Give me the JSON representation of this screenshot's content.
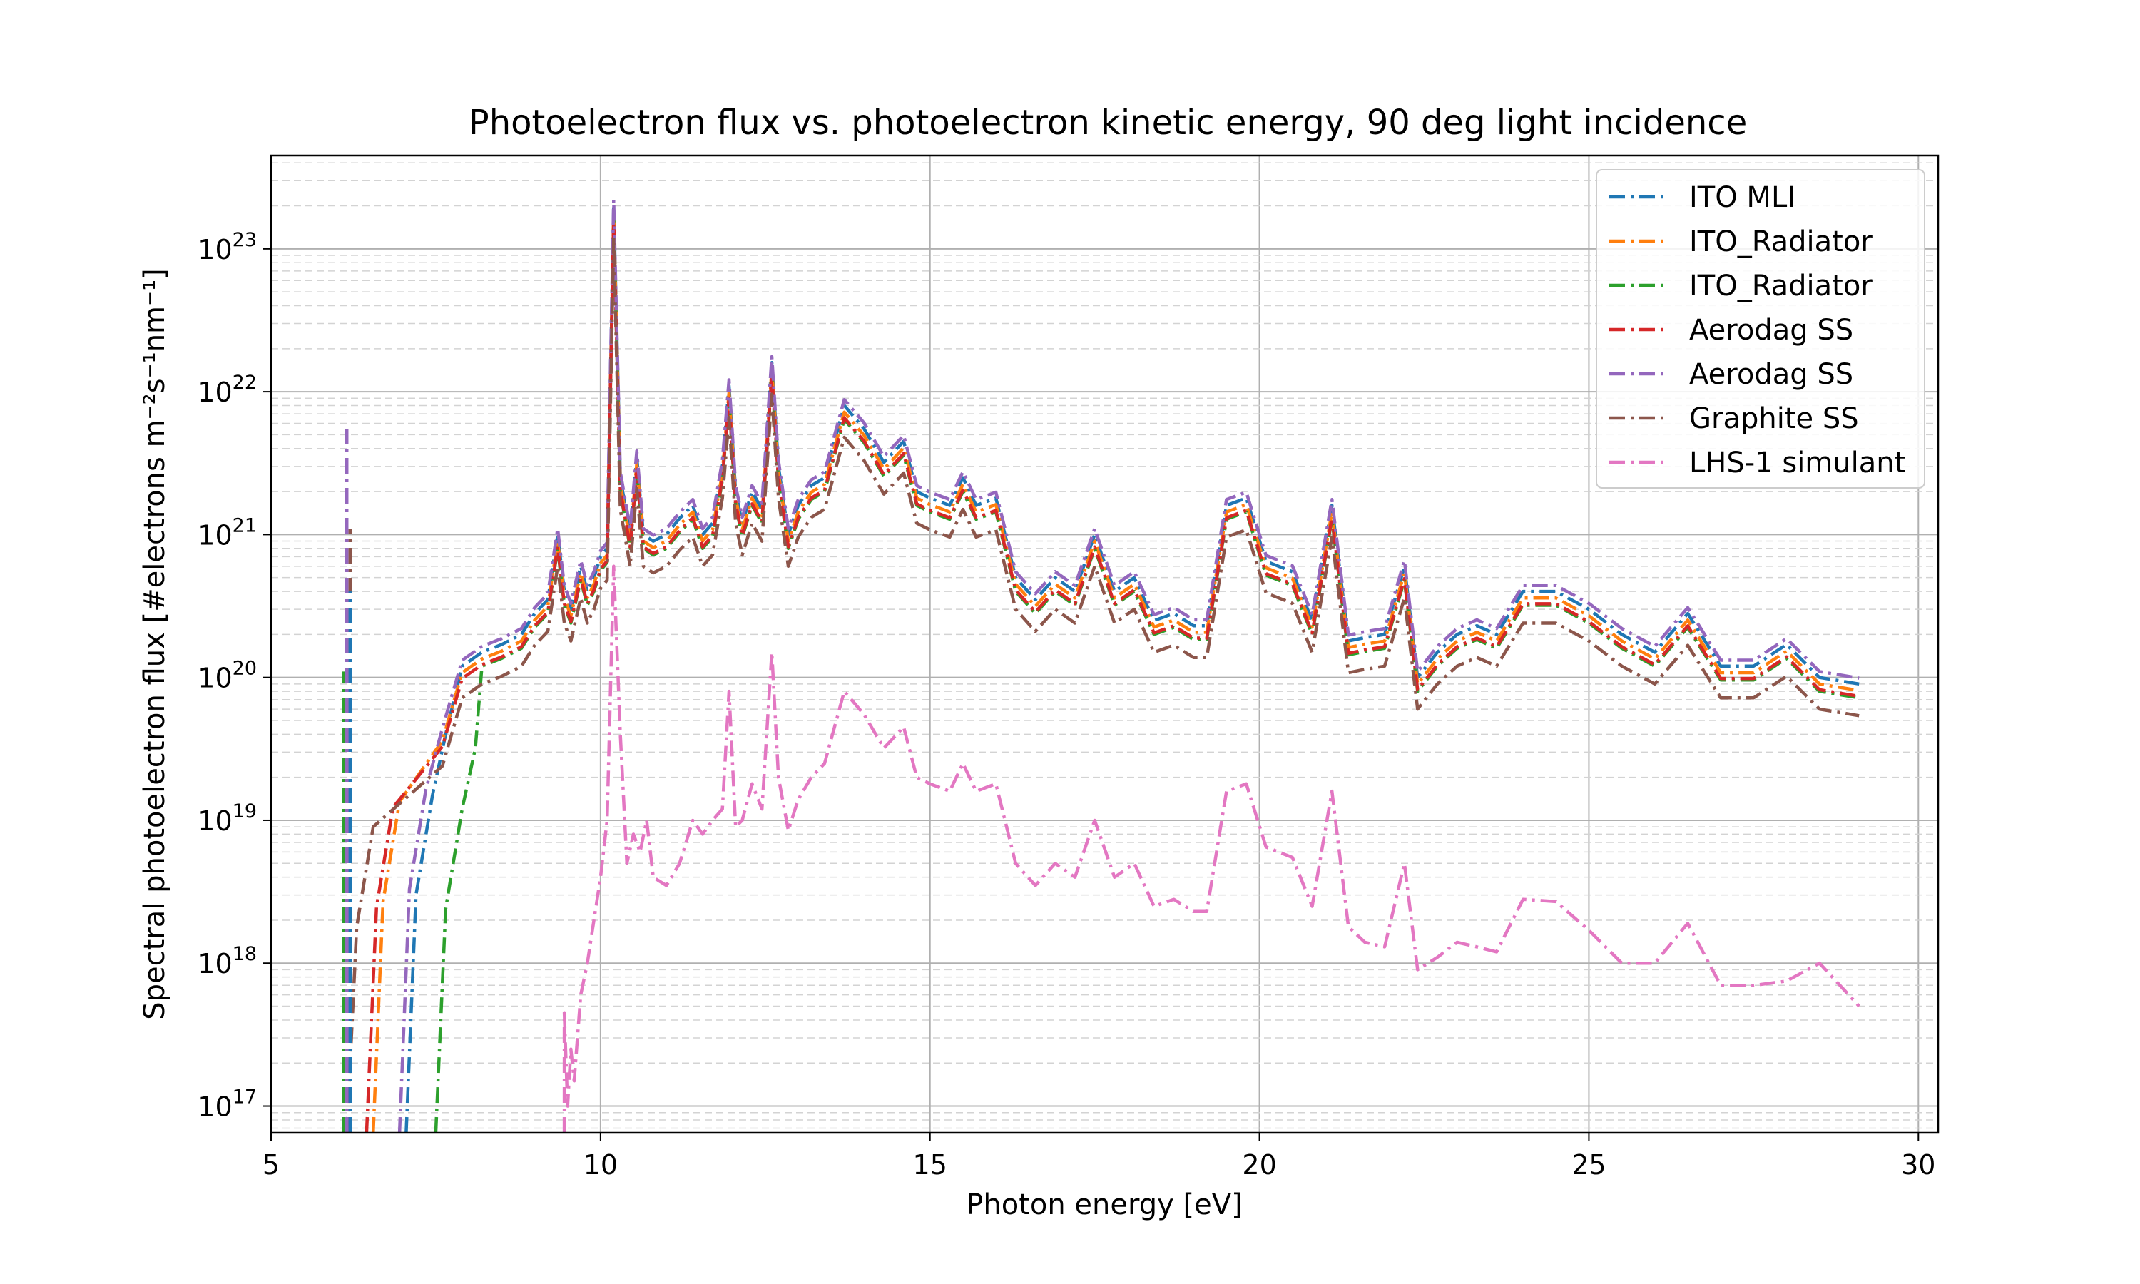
{
  "chart_data": {
    "type": "line",
    "title": "Photoelectron flux vs. photoelectron kinetic energy, 90 deg light incidence",
    "xlabel": "Photon energy [eV]",
    "ylabel": "Spectral photoelectron flux [#electrons m⁻²s⁻¹nm⁻¹]",
    "xlim": [
      5,
      30.3
    ],
    "ylim": [
      6.5e+16,
      4.5e+23
    ],
    "yscale": "log",
    "grid": true,
    "legend_position": "top-right",
    "x_ticks": [
      5,
      10,
      15,
      20,
      25,
      30
    ],
    "x_tick_labels": [
      "5",
      "10",
      "15",
      "20",
      "25",
      "30"
    ],
    "y_ticks": [
      17,
      18,
      19,
      20,
      21,
      22,
      23
    ],
    "y_tick_labels": [
      "10",
      "10",
      "10",
      "10",
      "10",
      "10",
      "10"
    ],
    "y_tick_exponents": [
      "17",
      "18",
      "19",
      "20",
      "21",
      "22",
      "23"
    ],
    "series": [
      {
        "name": "ITO MLI",
        "color": "#1f77b4",
        "drop_x": 7.05,
        "scale": 1.0
      },
      {
        "name": "ITO_Radiator",
        "color": "#ff7f0e",
        "drop_x": 6.55,
        "scale": 0.9
      },
      {
        "name": "ITO_Radiator",
        "color": "#2ca02c",
        "drop_x": 7.5,
        "scale": 0.8
      },
      {
        "name": "Aerodag SS",
        "color": "#d62728",
        "drop_x": 6.45,
        "scale": 0.82
      },
      {
        "name": "Aerodag SS",
        "color": "#9467bd",
        "drop_x": 6.95,
        "scale": 1.1
      },
      {
        "name": "Graphite SS",
        "color": "#8c564b",
        "drop_x": 6.15,
        "scale": 0.6
      },
      {
        "name": "LHS-1 simulant",
        "color": "#e377c2",
        "drop_x": 9.45,
        "scale": 1.0
      }
    ],
    "base_curve": {
      "x": [
        7.9,
        8.2,
        8.5,
        8.8,
        9.0,
        9.2,
        9.35,
        9.45,
        9.55,
        9.7,
        9.8,
        9.9,
        10.0,
        10.1,
        10.2,
        10.3,
        10.45,
        10.55,
        10.65,
        10.8,
        11.0,
        11.2,
        11.4,
        11.55,
        11.7,
        11.85,
        11.95,
        12.05,
        12.15,
        12.3,
        12.45,
        12.6,
        12.7,
        12.85,
        13.0,
        13.2,
        13.4,
        13.7,
        14.0,
        14.3,
        14.6,
        14.8,
        15.0,
        15.3,
        15.5,
        15.7,
        16.0,
        16.3,
        16.6,
        16.9,
        17.2,
        17.5,
        17.8,
        18.1,
        18.4,
        18.7,
        19.0,
        19.2,
        19.5,
        19.8,
        20.1,
        20.5,
        20.8,
        21.1,
        21.35,
        21.6,
        21.9,
        22.2,
        22.4,
        22.7,
        23.0,
        23.3,
        23.6,
        24.0,
        24.5,
        25.0,
        25.5,
        26.0,
        26.5,
        27.0,
        27.5,
        28.0,
        28.5,
        29.1
      ],
      "y": [
        1.2e+20,
        1.5e+20,
        1.7e+20,
        2e+20,
        2.8e+20,
        3.5e+20,
        1e+21,
        4e+20,
        3e+20,
        6e+20,
        4e+20,
        5e+20,
        7e+20,
        8e+20,
        2e+23,
        2.5e+21,
        1e+21,
        3.5e+21,
        1e+21,
        9e+20,
        1e+21,
        1.3e+21,
        1.6e+21,
        1e+21,
        1.2e+21,
        3e+21,
        1.1e+22,
        2e+21,
        1.2e+21,
        2e+21,
        1.5e+21,
        1.6e+22,
        3e+21,
        1e+21,
        1.6e+21,
        2.2e+21,
        2.5e+21,
        8e+21,
        5.5e+21,
        3.2e+21,
        4.5e+21,
        2e+21,
        1.8e+21,
        1.6e+21,
        2.5e+21,
        1.6e+21,
        1.8e+21,
        5e+20,
        3.5e+20,
        5e+20,
        4e+20,
        1e+21,
        4e+20,
        5e+20,
        2.5e+20,
        2.8e+20,
        2.3e+20,
        2.3e+20,
        1.6e+21,
        1.8e+21,
        6.5e+20,
        5.5e+20,
        2.5e+20,
        1.6e+21,
        1.8e+20,
        1.9e+20,
        2e+20,
        6e+20,
        1e+20,
        1.5e+20,
        2e+20,
        2.3e+20,
        2e+20,
        4e+20,
        4e+20,
        3e+20,
        2e+20,
        1.5e+20,
        2.8e+20,
        1.2e+20,
        1.2e+20,
        1.7e+20,
        1e+20,
        9e+19
      ]
    },
    "lhs_curve": {
      "x": [
        9.45,
        9.5,
        9.55,
        9.6,
        9.7,
        9.8,
        9.9,
        10.0,
        10.1,
        10.2,
        10.3,
        10.4,
        10.5,
        10.6,
        10.7,
        10.8,
        11.0,
        11.2,
        11.4,
        11.55,
        11.7,
        11.85,
        11.95,
        12.05,
        12.15,
        12.3,
        12.45,
        12.6,
        12.7,
        12.85,
        13.0,
        13.2,
        13.4,
        13.7,
        14.0,
        14.3,
        14.6,
        14.8,
        15.0,
        15.3,
        15.5,
        15.7,
        16.0,
        16.3,
        16.6,
        16.9,
        17.2,
        17.5,
        17.8,
        18.1,
        18.4,
        18.7,
        19.0,
        19.2,
        19.5,
        19.8,
        20.1,
        20.5,
        20.8,
        21.1,
        21.35,
        21.6,
        21.9,
        22.2,
        22.4,
        22.7,
        23.0,
        23.3,
        23.6,
        24.0,
        24.5,
        25.0,
        25.5,
        26.0,
        26.5,
        27.0,
        27.5,
        28.0,
        28.5,
        29.1
      ],
      "y": [
        4.5e+17,
        1e+17,
        2.5e+17,
        1.5e+17,
        6e+17,
        1e+18,
        2e+18,
        4e+18,
        1e+19,
        6e+20,
        4e+19,
        5e+18,
        8e+18,
        6e+18,
        1e+19,
        4e+18,
        3.5e+18,
        5e+18,
        1e+19,
        8e+18,
        1e+19,
        1.2e+19,
        8e+19,
        9e+18,
        1e+19,
        1.8e+19,
        1.2e+19,
        1.5e+20,
        2e+19,
        8.5e+18,
        1.4e+19,
        2e+19,
        2.5e+19,
        8e+19,
        5.5e+19,
        3.2e+19,
        4.5e+19,
        2e+19,
        1.8e+19,
        1.6e+19,
        2.5e+19,
        1.6e+19,
        1.8e+19,
        5e+18,
        3.5e+18,
        5e+18,
        4e+18,
        1e+19,
        4e+18,
        5e+18,
        2.5e+18,
        2.8e+18,
        2.3e+18,
        2.3e+18,
        1.6e+19,
        1.8e+19,
        6.5e+18,
        5.5e+18,
        2.5e+18,
        1.6e+19,
        1.8e+18,
        1.4e+18,
        1.3e+18,
        5e+18,
        9e+17,
        1.1e+18,
        1.4e+18,
        1.3e+18,
        1.2e+18,
        2.8e+18,
        2.7e+18,
        1.7e+18,
        1e+18,
        1e+18,
        1.9e+18,
        7e+17,
        7e+17,
        7.5e+17,
        1e+18,
        5e+17
      ]
    },
    "low_energy_spikes": [
      {
        "series": 4,
        "x": 6.15,
        "y_top": 5.5e+21
      },
      {
        "series": 5,
        "x": 6.2,
        "y_top": 1.1e+21
      },
      {
        "series": 2,
        "x": 6.1,
        "y_top": 1.1e+20
      },
      {
        "series": 0,
        "x": 6.2,
        "y_top": 4e+20
      }
    ]
  }
}
